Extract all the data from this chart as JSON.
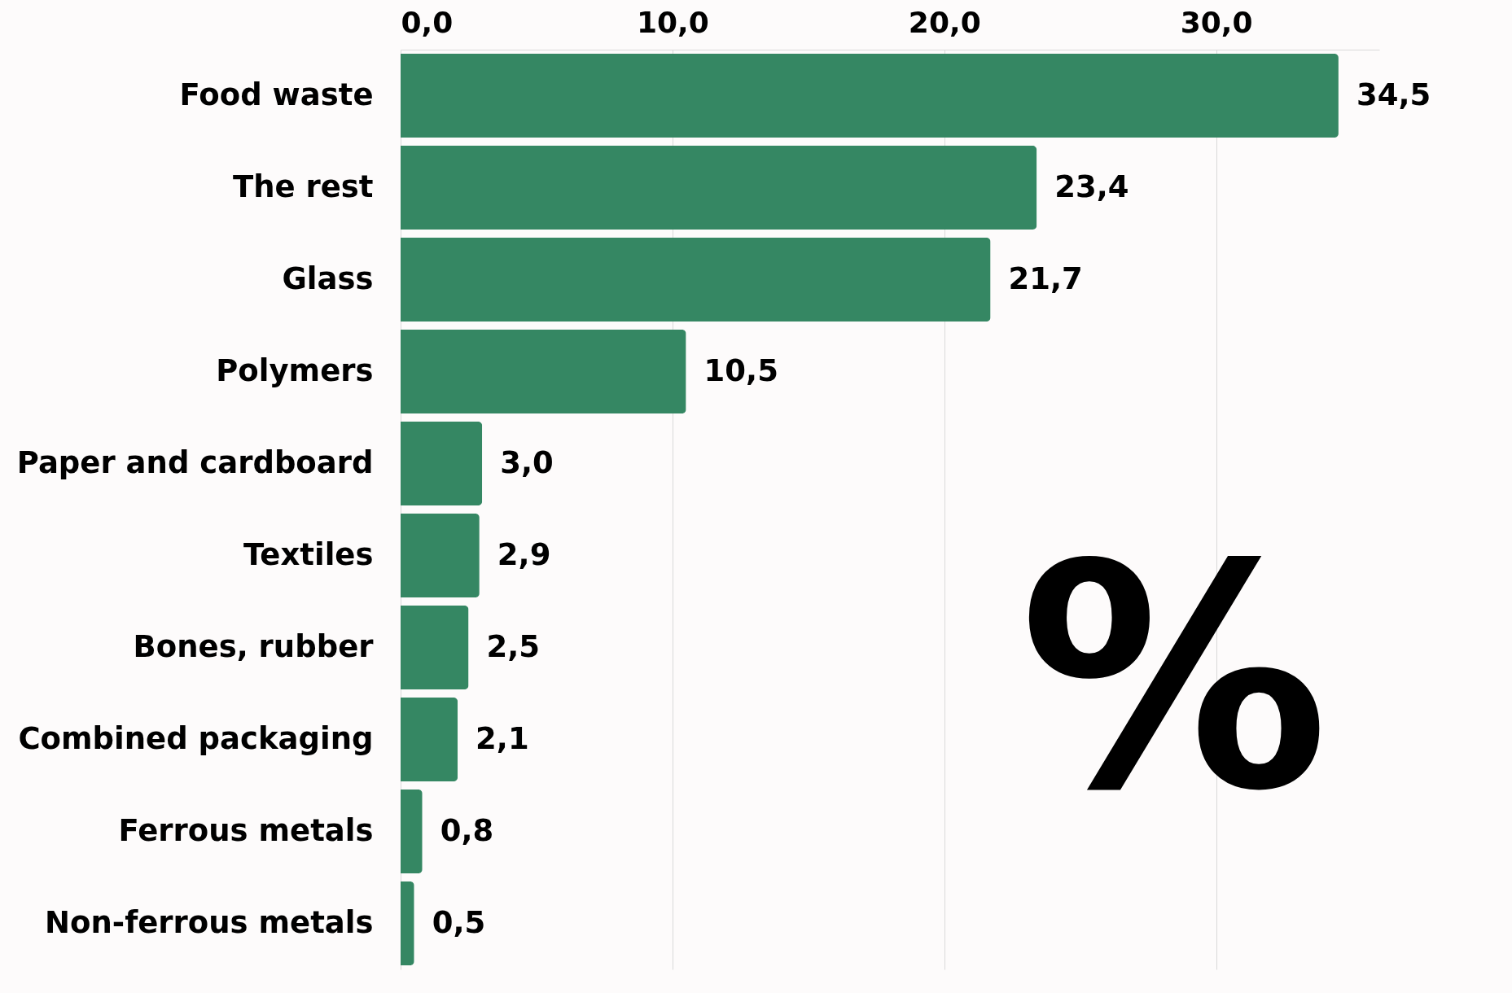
{
  "chart_data": {
    "type": "bar",
    "orientation": "horizontal",
    "categories": [
      "Food waste",
      "The rest",
      "Glass",
      "Polymers",
      "Paper and cardboard",
      "Textiles",
      "Bones, rubber",
      "Combined packaging",
      "Ferrous metals",
      "Non-ferrous metals"
    ],
    "values": [
      34.5,
      23.4,
      21.7,
      10.5,
      3.0,
      2.9,
      2.5,
      2.1,
      0.8,
      0.5
    ],
    "value_labels": [
      "34,5",
      "23,4",
      "21,7",
      "10,5",
      "3,0",
      "2,9",
      "2,5",
      "2,1",
      "0,8",
      "0,5"
    ],
    "color": "#358763",
    "xticks": [
      {
        "value": 0,
        "label": "0,0"
      },
      {
        "value": 10,
        "label": "10,0"
      },
      {
        "value": 20,
        "label": "20,0"
      },
      {
        "value": 30,
        "label": "30,0"
      }
    ],
    "xlim": [
      0,
      36
    ],
    "grid": "x",
    "annotations": [
      "%"
    ]
  }
}
